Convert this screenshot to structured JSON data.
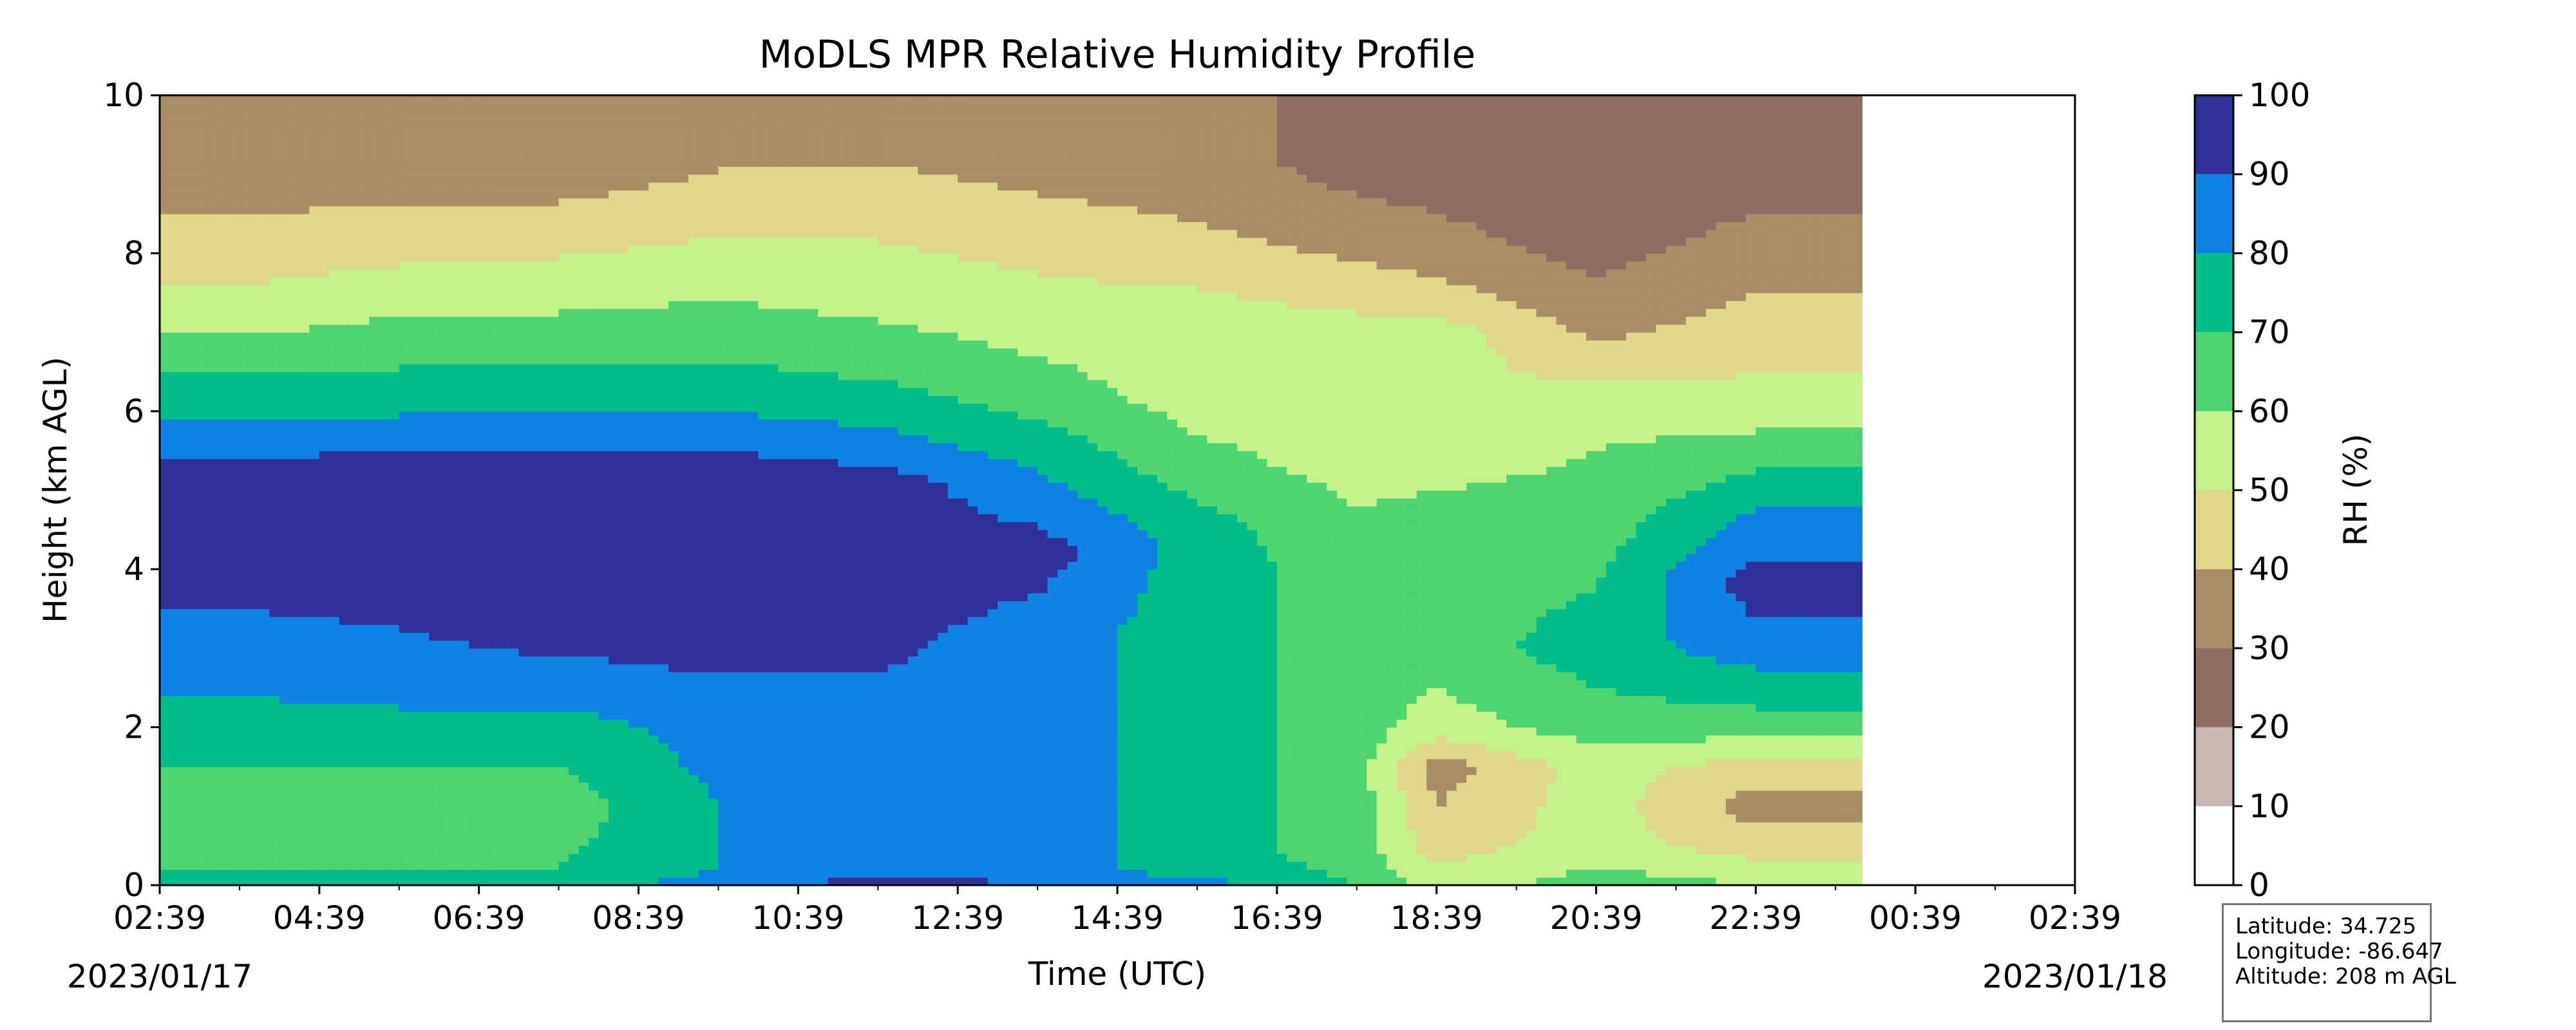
{
  "chart_data": {
    "type": "heatmap",
    "subtype": "filled-contour",
    "title": "MoDLS MPR Relative Humidity Profile",
    "xlabel": "Time (UTC)",
    "ylabel": "Height (km AGL)",
    "x_ticks": [
      "02:39",
      "04:39",
      "06:39",
      "08:39",
      "10:39",
      "12:39",
      "14:39",
      "16:39",
      "18:39",
      "20:39",
      "22:39",
      "00:39",
      "02:39"
    ],
    "x_date_labels": {
      "start": "2023/01/17",
      "end": "2023/01/18"
    },
    "xlim_hours": [
      0,
      24
    ],
    "y_ticks": [
      0,
      2,
      4,
      6,
      8,
      10
    ],
    "ylim": [
      0,
      10
    ],
    "data_end_time": "23:59",
    "colorbar": {
      "label": "RH (%)",
      "ticks": [
        0,
        10,
        20,
        30,
        40,
        50,
        60,
        70,
        80,
        90,
        100
      ],
      "levels": [
        {
          "range": [
            0,
            10
          ],
          "color": "#ffffff"
        },
        {
          "range": [
            10,
            20
          ],
          "color": "#c8b6b1"
        },
        {
          "range": [
            20,
            30
          ],
          "color": "#8d6e64"
        },
        {
          "range": [
            30,
            40
          ],
          "color": "#a98d65"
        },
        {
          "range": [
            40,
            50
          ],
          "color": "#dfd78a"
        },
        {
          "range": [
            50,
            60
          ],
          "color": "#c6f28c"
        },
        {
          "range": [
            60,
            70
          ],
          "color": "#4ed572"
        },
        {
          "range": [
            70,
            80
          ],
          "color": "#00bd8a"
        },
        {
          "range": [
            80,
            90
          ],
          "color": "#0f82e4"
        },
        {
          "range": [
            90,
            100
          ],
          "color": "#30309a"
        }
      ]
    },
    "rh_profiles": [
      {
        "time": "02:39",
        "boundaries_km": {
          "90": 5.1,
          "80": 3.5,
          "70": 2.3,
          "60": 1.7,
          "50": 7.0,
          "40": 8.4
        },
        "blobs": []
      },
      {
        "time": "03:39",
        "rh_levels": [
          [
            0.0,
            75
          ],
          [
            0.2,
            70
          ],
          [
            1.0,
            65
          ],
          [
            2.0,
            75
          ],
          [
            2.8,
            85
          ],
          [
            4.2,
            95
          ],
          [
            5.2,
            95
          ],
          [
            5.6,
            85
          ],
          [
            6.2,
            75
          ],
          [
            6.7,
            65
          ],
          [
            7.2,
            55
          ],
          [
            8.0,
            45
          ],
          [
            9.0,
            35
          ],
          [
            10.0,
            35
          ]
        ]
      },
      {
        "time": "05:39",
        "rh_levels": [
          [
            0.0,
            75
          ],
          [
            0.2,
            70
          ],
          [
            1.0,
            65
          ],
          [
            2.0,
            75
          ],
          [
            2.5,
            85
          ],
          [
            4.0,
            95
          ],
          [
            5.3,
            95
          ],
          [
            5.7,
            85
          ],
          [
            6.2,
            75
          ],
          [
            6.9,
            65
          ],
          [
            7.5,
            55
          ],
          [
            8.2,
            45
          ],
          [
            9.0,
            35
          ],
          [
            10.0,
            35
          ]
        ]
      },
      {
        "time": "07:39",
        "rh_levels": [
          [
            0.0,
            75
          ],
          [
            0.2,
            70
          ],
          [
            1.0,
            65
          ],
          [
            2.0,
            75
          ],
          [
            2.5,
            85
          ],
          [
            3.3,
            95
          ],
          [
            5.3,
            95
          ],
          [
            5.7,
            85
          ],
          [
            6.2,
            75
          ],
          [
            6.9,
            65
          ],
          [
            7.6,
            55
          ],
          [
            8.3,
            45
          ],
          [
            9.0,
            35
          ],
          [
            10.0,
            35
          ]
        ]
      },
      {
        "time": "09:39",
        "rh_levels": [
          [
            0.0,
            85
          ],
          [
            0.2,
            80
          ],
          [
            1.0,
            80
          ],
          [
            2.0,
            85
          ],
          [
            3.3,
            95
          ],
          [
            5.3,
            95
          ],
          [
            5.7,
            85
          ],
          [
            6.3,
            75
          ],
          [
            7.0,
            65
          ],
          [
            7.8,
            55
          ],
          [
            8.6,
            45
          ],
          [
            9.5,
            35
          ],
          [
            10.0,
            35
          ]
        ]
      },
      {
        "time": "11:39",
        "rh_levels": [
          [
            0.0,
            95
          ],
          [
            0.2,
            85
          ],
          [
            1.0,
            85
          ],
          [
            2.0,
            85
          ],
          [
            3.4,
            95
          ],
          [
            5.1,
            95
          ],
          [
            5.5,
            85
          ],
          [
            6.1,
            75
          ],
          [
            6.7,
            65
          ],
          [
            7.6,
            55
          ],
          [
            8.7,
            45
          ],
          [
            9.6,
            35
          ],
          [
            10.0,
            35
          ]
        ]
      },
      {
        "time": "13:39",
        "rh_levels": [
          [
            0.0,
            90
          ],
          [
            0.2,
            85
          ],
          [
            2.0,
            85
          ],
          [
            3.2,
            85
          ],
          [
            4.2,
            95
          ],
          [
            4.9,
            85
          ],
          [
            5.6,
            75
          ],
          [
            6.2,
            65
          ],
          [
            7.2,
            55
          ],
          [
            8.3,
            45
          ],
          [
            9.2,
            35
          ],
          [
            10.0,
            35
          ]
        ]
      },
      {
        "time": "15:39",
        "rh_levels": [
          [
            0.0,
            85
          ],
          [
            0.2,
            75
          ],
          [
            2.0,
            75
          ],
          [
            3.5,
            75
          ],
          [
            4.0,
            75
          ],
          [
            4.5,
            75
          ],
          [
            5.2,
            65
          ],
          [
            6.2,
            55
          ],
          [
            7.2,
            55
          ],
          [
            7.9,
            45
          ],
          [
            8.9,
            35
          ],
          [
            10.0,
            35
          ]
        ]
      },
      {
        "time": "17:39",
        "rh_levels": [
          [
            0.0,
            70
          ],
          [
            0.5,
            65
          ],
          [
            2.0,
            65
          ],
          [
            4.0,
            65
          ],
          [
            5.5,
            55
          ],
          [
            7.0,
            55
          ],
          [
            7.5,
            45
          ],
          [
            8.3,
            35
          ],
          [
            9.2,
            25
          ],
          [
            10.0,
            25
          ]
        ]
      },
      {
        "time": "18:39",
        "rh_levels": [
          [
            0.0,
            55
          ],
          [
            0.5,
            45
          ],
          [
            1.5,
            35
          ],
          [
            2.0,
            55
          ],
          [
            3.0,
            65
          ],
          [
            4.5,
            65
          ],
          [
            5.5,
            55
          ],
          [
            7.0,
            55
          ],
          [
            7.4,
            45
          ],
          [
            8.0,
            35
          ],
          [
            9.0,
            25
          ],
          [
            10.0,
            25
          ]
        ]
      },
      {
        "time": "20:39",
        "rh_levels": [
          [
            0.0,
            65
          ],
          [
            0.5,
            55
          ],
          [
            1.5,
            55
          ],
          [
            2.0,
            65
          ],
          [
            3.0,
            75
          ],
          [
            4.5,
            65
          ],
          [
            5.5,
            60
          ],
          [
            6.2,
            55
          ],
          [
            6.5,
            45
          ],
          [
            7.2,
            35
          ],
          [
            8.2,
            25
          ],
          [
            10.0,
            25
          ]
        ]
      },
      {
        "time": "22:39",
        "rh_levels": [
          [
            0.0,
            60
          ],
          [
            0.5,
            45
          ],
          [
            1.0,
            35
          ],
          [
            1.5,
            45
          ],
          [
            2.0,
            65
          ],
          [
            2.5,
            75
          ],
          [
            3.0,
            85
          ],
          [
            3.8,
            95
          ],
          [
            4.5,
            85
          ],
          [
            5.0,
            75
          ],
          [
            5.5,
            65
          ],
          [
            6.0,
            55
          ],
          [
            7.0,
            45
          ],
          [
            8.0,
            35
          ],
          [
            9.0,
            25
          ],
          [
            10.0,
            25
          ]
        ]
      }
    ]
  },
  "info": {
    "latitude": "Latitude: 34.725",
    "longitude": "Longitude: -86.647",
    "altitude": "Altitude: 208 m AGL"
  }
}
